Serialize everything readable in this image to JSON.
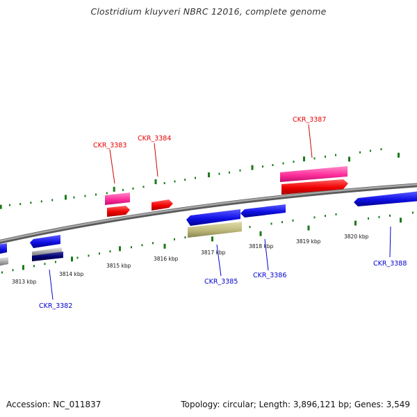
{
  "title": "Clostridium kluyveri NBRC 12016, complete genome",
  "footer": {
    "accession": "Accession: NC_011837",
    "stats": "Topology: circular; Length: 3,896,121 bp; Genes: 3,549"
  },
  "scale": {
    "ticks": [
      "3813 kbp",
      "3814 kbp",
      "3815 kbp",
      "3816 kbp",
      "3817 kbp",
      "3818 kbp",
      "3819 kbp",
      "3820 kbp"
    ]
  },
  "genes": [
    {
      "id": "CKR_3382",
      "strand": "-",
      "color": "#0000cc"
    },
    {
      "id": "CKR_3383",
      "strand": "+",
      "color": "#e60000"
    },
    {
      "id": "CKR_3384",
      "strand": "+",
      "color": "#e60000"
    },
    {
      "id": "CKR_3385",
      "strand": "-",
      "color": "#0000cc"
    },
    {
      "id": "CKR_3386",
      "strand": "-",
      "color": "#0000cc"
    },
    {
      "id": "CKR_3387",
      "strand": "+",
      "color": "#e60000"
    },
    {
      "id": "CKR_3388",
      "strand": "-",
      "color": "#0000cc"
    }
  ],
  "colors": {
    "backbone": "#8c8c8c",
    "tick": "#1a7a1a",
    "forward_cds": "#ff1a1a",
    "forward_feature": "#ff3fa6",
    "reverse_cds": "#1a1aee",
    "reverse_feature": "#bfbb7c",
    "reverse_rrna": "#000066",
    "reverse_other": "#999999"
  }
}
